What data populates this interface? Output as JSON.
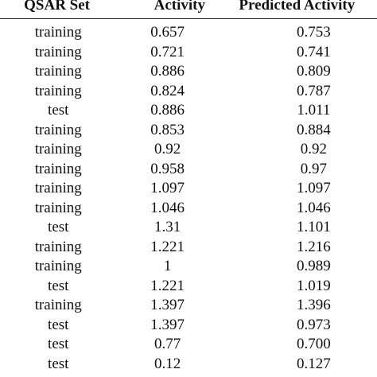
{
  "table": {
    "headers": [
      "QSAR Set",
      "Activity",
      "Predicted Activity"
    ],
    "rows": [
      [
        "training",
        "0.657",
        "0.753"
      ],
      [
        "training",
        "0.721",
        "0.741"
      ],
      [
        "training",
        "0.886",
        "0.809"
      ],
      [
        "training",
        "0.824",
        "0.787"
      ],
      [
        "test",
        "0.886",
        "1.011"
      ],
      [
        "training",
        "0.853",
        "0.884"
      ],
      [
        "training",
        "0.92",
        "0.92"
      ],
      [
        "training",
        "0.958",
        "0.97"
      ],
      [
        "training",
        "1.097",
        "1.097"
      ],
      [
        "training",
        "1.046",
        "1.046"
      ],
      [
        "test",
        "1.31",
        "1.101"
      ],
      [
        "training",
        "1.221",
        "1.216"
      ],
      [
        "training",
        "1",
        "0.989"
      ],
      [
        "test",
        "1.221",
        "1.019"
      ],
      [
        "training",
        "1.397",
        "1.396"
      ],
      [
        "test",
        "1.397",
        "0.973"
      ],
      [
        "test",
        "0.77",
        "0.700"
      ],
      [
        "test",
        "0.12",
        "0.127"
      ]
    ]
  }
}
